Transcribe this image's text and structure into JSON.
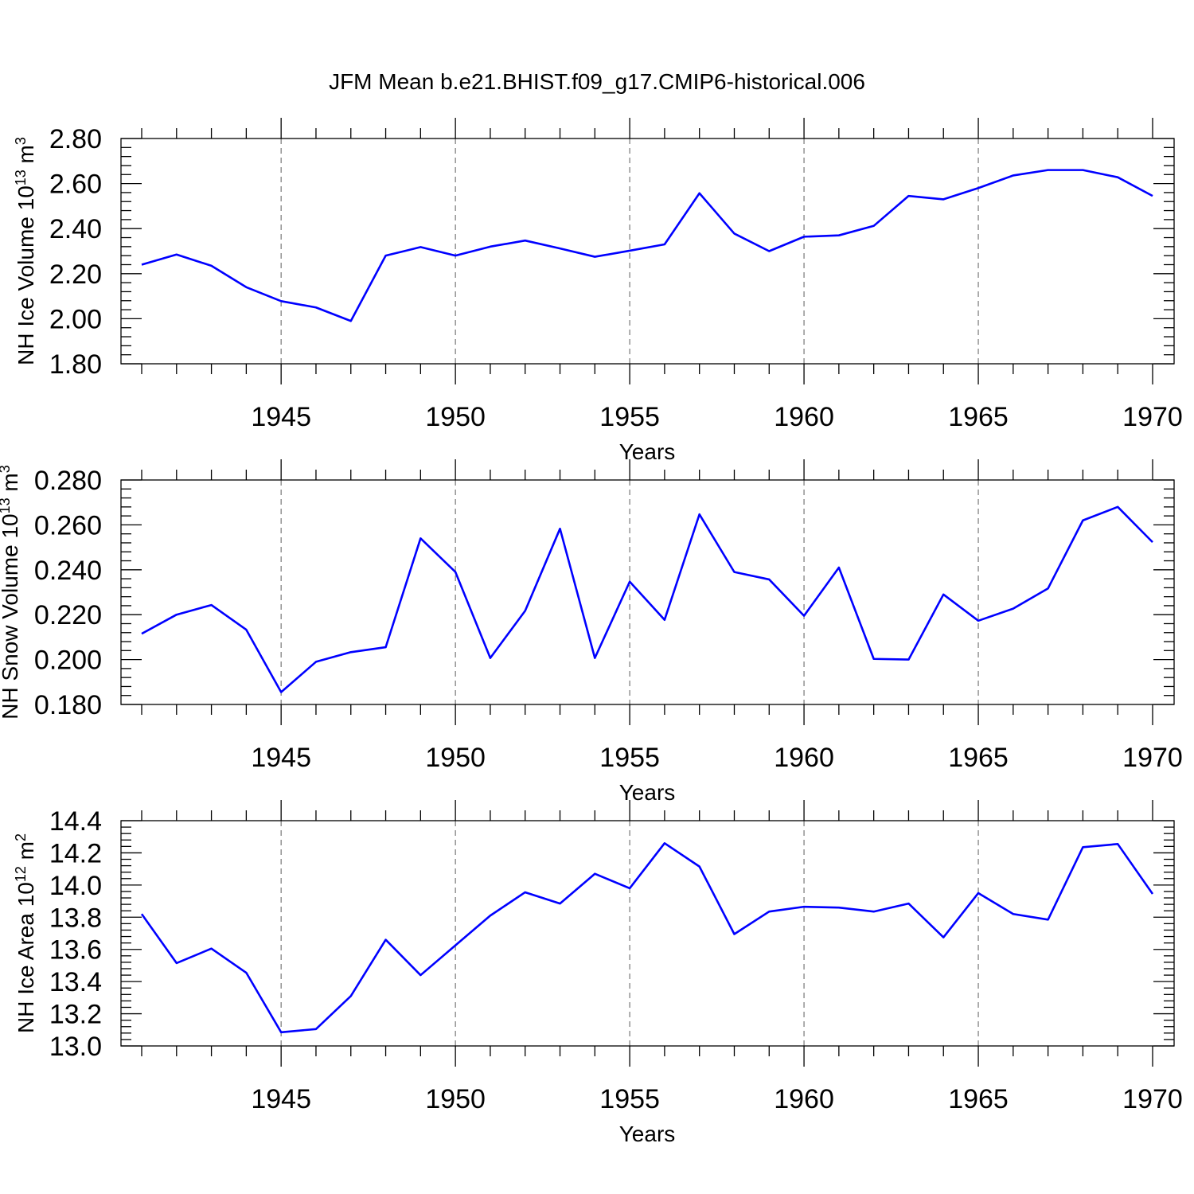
{
  "title": "JFM Mean b.e21.BHIST.f09_g17.CMIP6-historical.006",
  "colors": {
    "line": "#0000ff",
    "frame": "#000000",
    "grid": "#777777"
  },
  "chart_data": [
    {
      "type": "line",
      "ylabel": {
        "text": "NH Ice Volume 10",
        "sup": "13",
        "unit": " m",
        "unit_sup": "3"
      },
      "xlabel": "Years",
      "xlim": [
        1941,
        1970
      ],
      "ylim": [
        1.8,
        2.8
      ],
      "x_ticks": [
        "1945",
        "1950",
        "1955",
        "1960",
        "1965",
        "1970"
      ],
      "y_ticks": [
        "1.80",
        "2.00",
        "2.20",
        "2.40",
        "2.60",
        "2.80"
      ],
      "grid": "vertical dashed at 5-year marks",
      "x": [
        1941,
        1942,
        1943,
        1944,
        1945,
        1946,
        1947,
        1948,
        1949,
        1950,
        1951,
        1952,
        1953,
        1954,
        1955,
        1956,
        1957,
        1958,
        1959,
        1960,
        1961,
        1962,
        1963,
        1964,
        1965,
        1966,
        1967,
        1968,
        1969,
        1970
      ],
      "series": [
        {
          "values": [
            2.24,
            2.285,
            2.235,
            2.14,
            2.078,
            2.05,
            1.99,
            2.28,
            2.318,
            2.28,
            2.32,
            2.347,
            2.312,
            2.275,
            2.302,
            2.33,
            2.557,
            2.378,
            2.3,
            2.364,
            2.37,
            2.412,
            2.545,
            2.53,
            2.58,
            2.636,
            2.66,
            2.66,
            2.628,
            2.545
          ]
        }
      ]
    },
    {
      "type": "line",
      "ylabel": {
        "text": "NH Snow Volume 10",
        "sup": "13",
        "unit": " m",
        "unit_sup": "3"
      },
      "xlabel": "Years",
      "xlim": [
        1941,
        1970
      ],
      "ylim": [
        0.18,
        0.28
      ],
      "x_ticks": [
        "1945",
        "1950",
        "1955",
        "1960",
        "1965",
        "1970"
      ],
      "y_ticks": [
        "0.180",
        "0.200",
        "0.220",
        "0.240",
        "0.260",
        "0.280"
      ],
      "grid": "vertical dashed at 5-year marks",
      "x": [
        1941,
        1942,
        1943,
        1944,
        1945,
        1946,
        1947,
        1948,
        1949,
        1950,
        1951,
        1952,
        1953,
        1954,
        1955,
        1956,
        1957,
        1958,
        1959,
        1960,
        1961,
        1962,
        1963,
        1964,
        1965,
        1966,
        1967,
        1968,
        1969,
        1970
      ],
      "series": [
        {
          "values": [
            0.2115,
            0.22,
            0.2243,
            0.2133,
            0.1855,
            0.199,
            0.2033,
            0.2055,
            0.254,
            0.239,
            0.2007,
            0.2217,
            0.2583,
            0.2007,
            0.2347,
            0.2177,
            0.2647,
            0.239,
            0.2357,
            0.2195,
            0.241,
            0.2003,
            0.2,
            0.229,
            0.2173,
            0.2227,
            0.2317,
            0.262,
            0.268,
            0.2523
          ]
        }
      ]
    },
    {
      "type": "line",
      "ylabel": {
        "text": "NH Ice Area 10",
        "sup": "12",
        "unit": " m",
        "unit_sup": "2"
      },
      "xlabel": "Years",
      "xlim": [
        1941,
        1970
      ],
      "ylim": [
        13.0,
        14.4
      ],
      "x_ticks": [
        "1945",
        "1950",
        "1955",
        "1960",
        "1965",
        "1970"
      ],
      "y_ticks": [
        "13.0",
        "13.2",
        "13.4",
        "13.6",
        "13.8",
        "14.0",
        "14.2",
        "14.4"
      ],
      "grid": "vertical dashed at 5-year marks",
      "x": [
        1941,
        1942,
        1943,
        1944,
        1945,
        1946,
        1947,
        1948,
        1949,
        1950,
        1951,
        1952,
        1953,
        1954,
        1955,
        1956,
        1957,
        1958,
        1959,
        1960,
        1961,
        1962,
        1963,
        1964,
        1965,
        1966,
        1967,
        1968,
        1969,
        1970
      ],
      "series": [
        {
          "values": [
            13.82,
            13.515,
            13.605,
            13.455,
            13.085,
            13.105,
            13.31,
            13.66,
            13.44,
            13.625,
            13.81,
            13.955,
            13.885,
            14.07,
            13.98,
            14.26,
            14.115,
            13.695,
            13.835,
            13.865,
            13.86,
            13.835,
            13.885,
            13.675,
            13.95,
            13.82,
            13.785,
            14.235,
            14.255,
            13.945
          ]
        }
      ]
    }
  ]
}
